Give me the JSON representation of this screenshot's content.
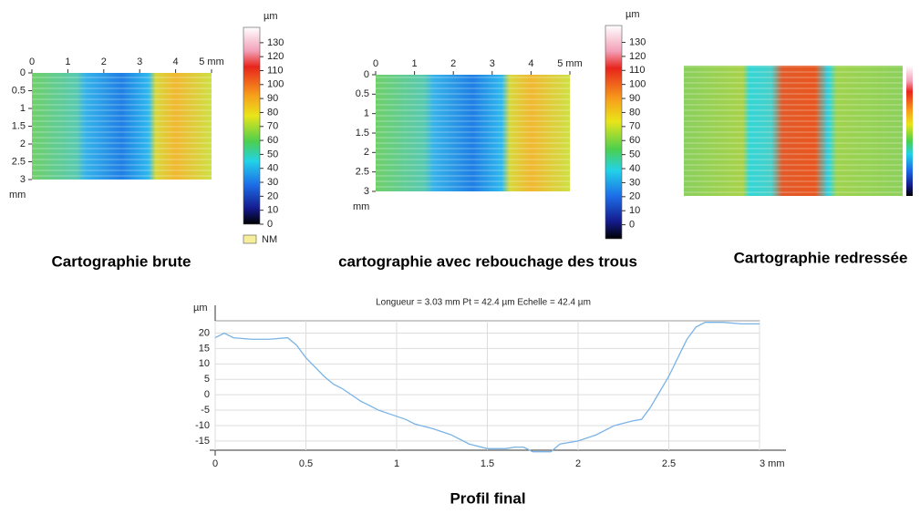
{
  "maps": [
    {
      "caption": "Cartographie brute",
      "xlim": [
        0,
        5
      ],
      "ylim": [
        0,
        3
      ],
      "xticks": [
        0,
        1,
        2,
        3,
        4,
        {
          "value": 5,
          "label": "5 mm"
        }
      ],
      "yticks": [
        0,
        0.5,
        1,
        1.5,
        2,
        2.5,
        3
      ],
      "y_unit": "mm",
      "colorbar": {
        "unit": "µm",
        "clim": [
          0,
          141
        ],
        "ticks": [
          0,
          10,
          20,
          30,
          40,
          50,
          60,
          70,
          80,
          90,
          100,
          110,
          120,
          130
        ]
      },
      "legend": "NM"
    },
    {
      "caption": "cartographie avec rebouchage des trous",
      "xlim": [
        0,
        5
      ],
      "ylim": [
        0,
        3
      ],
      "xticks": [
        0,
        1,
        2,
        3,
        4,
        {
          "value": 5,
          "label": "5 mm"
        }
      ],
      "yticks": [
        0,
        0.5,
        1,
        1.5,
        2,
        2.5,
        3
      ],
      "y_unit": "mm",
      "colorbar": {
        "unit": "µm",
        "clim": [
          -10,
          142
        ],
        "ticks": [
          0,
          10,
          20,
          30,
          40,
          50,
          60,
          70,
          80,
          90,
          100,
          110,
          120,
          130
        ]
      }
    },
    {
      "caption": "Cartographie redressée"
    }
  ],
  "chart_data": {
    "type": "line",
    "title": "Longueur = 3.03 mm  Pt = 42.4 µm  Echelle = 42.4 µm",
    "caption": "Profil final",
    "y_unit": "µm",
    "color": "#7ab3e6",
    "grid": true,
    "xlim": [
      0,
      3
    ],
    "ylim": [
      -18,
      24
    ],
    "xticks": [
      0,
      0.5,
      1,
      1.5,
      2,
      2.5,
      {
        "value": 3,
        "label": "3 mm"
      }
    ],
    "yticks": [
      -15,
      -10,
      -5,
      0,
      5,
      10,
      15,
      20
    ],
    "x": [
      0,
      0.05,
      0.1,
      0.2,
      0.3,
      0.4,
      0.45,
      0.5,
      0.55,
      0.6,
      0.65,
      0.7,
      0.75,
      0.8,
      0.85,
      0.9,
      0.95,
      1.0,
      1.05,
      1.1,
      1.2,
      1.3,
      1.4,
      1.5,
      1.6,
      1.65,
      1.7,
      1.75,
      1.85,
      1.9,
      2.0,
      2.1,
      2.2,
      2.3,
      2.35,
      2.4,
      2.45,
      2.5,
      2.55,
      2.6,
      2.65,
      2.7,
      2.8,
      2.9,
      3.0
    ],
    "values": [
      18.5,
      20,
      18.5,
      18,
      18,
      18.5,
      16,
      12,
      9,
      6,
      3.5,
      2,
      0,
      -2,
      -3.5,
      -5,
      -6,
      -7,
      -8,
      -9.5,
      -11,
      -13,
      -16,
      -17.5,
      -17.5,
      -17,
      -17,
      -18.5,
      -18.5,
      -16,
      -15,
      -13,
      -10,
      -8.5,
      -8,
      -4,
      1,
      6,
      12,
      18,
      22,
      23.5,
      23.5,
      23,
      23
    ]
  }
}
